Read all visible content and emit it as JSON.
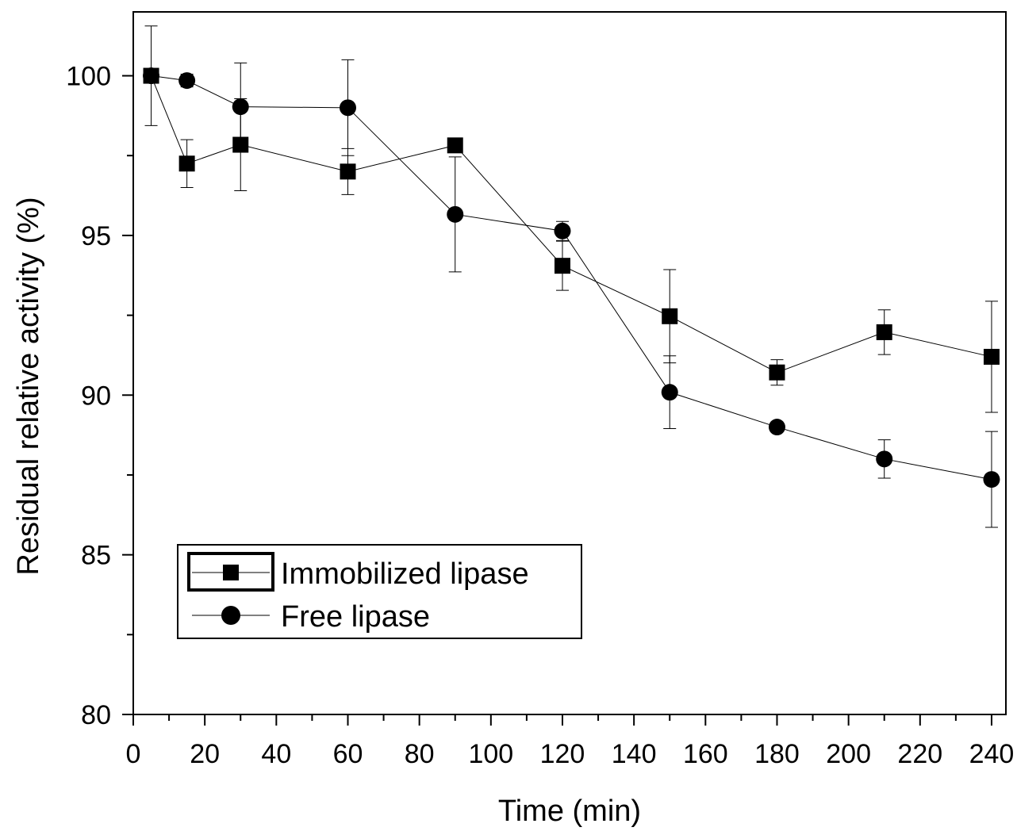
{
  "chart_data": {
    "type": "line",
    "title": "",
    "xlabel": "Time (min)",
    "ylabel": "Residual relative activity (%)",
    "xlim": [
      0,
      244
    ],
    "ylim": [
      80,
      102
    ],
    "xticks": [
      0,
      20,
      40,
      60,
      80,
      100,
      120,
      140,
      160,
      180,
      200,
      220,
      240
    ],
    "yticks": [
      80,
      85,
      90,
      95,
      100
    ],
    "grid": false,
    "legend_position": "bottom-left",
    "colors": {
      "series": "#000000"
    },
    "series": [
      {
        "name": "Immobilized lipase",
        "marker": "square",
        "x": [
          5,
          15,
          30,
          60,
          90,
          120,
          150,
          180,
          210,
          240
        ],
        "y": [
          100.0,
          97.25,
          97.84,
          97.0,
          97.82,
          94.05,
          92.47,
          90.71,
          91.97,
          91.2
        ],
        "error": [
          1.56,
          0.75,
          1.44,
          0.72,
          0.1,
          0.77,
          1.46,
          0.4,
          0.7,
          1.74
        ]
      },
      {
        "name": "Free lipase",
        "marker": "circle",
        "x": [
          5,
          15,
          30,
          60,
          90,
          120,
          150,
          180,
          210,
          240
        ],
        "y": [
          100.0,
          99.85,
          99.03,
          99.0,
          95.66,
          95.14,
          90.09,
          89.0,
          88.0,
          87.36
        ],
        "error": [
          0.0,
          0.2,
          1.37,
          1.5,
          1.8,
          0.3,
          1.14,
          0.1,
          0.6,
          1.5
        ]
      }
    ]
  }
}
